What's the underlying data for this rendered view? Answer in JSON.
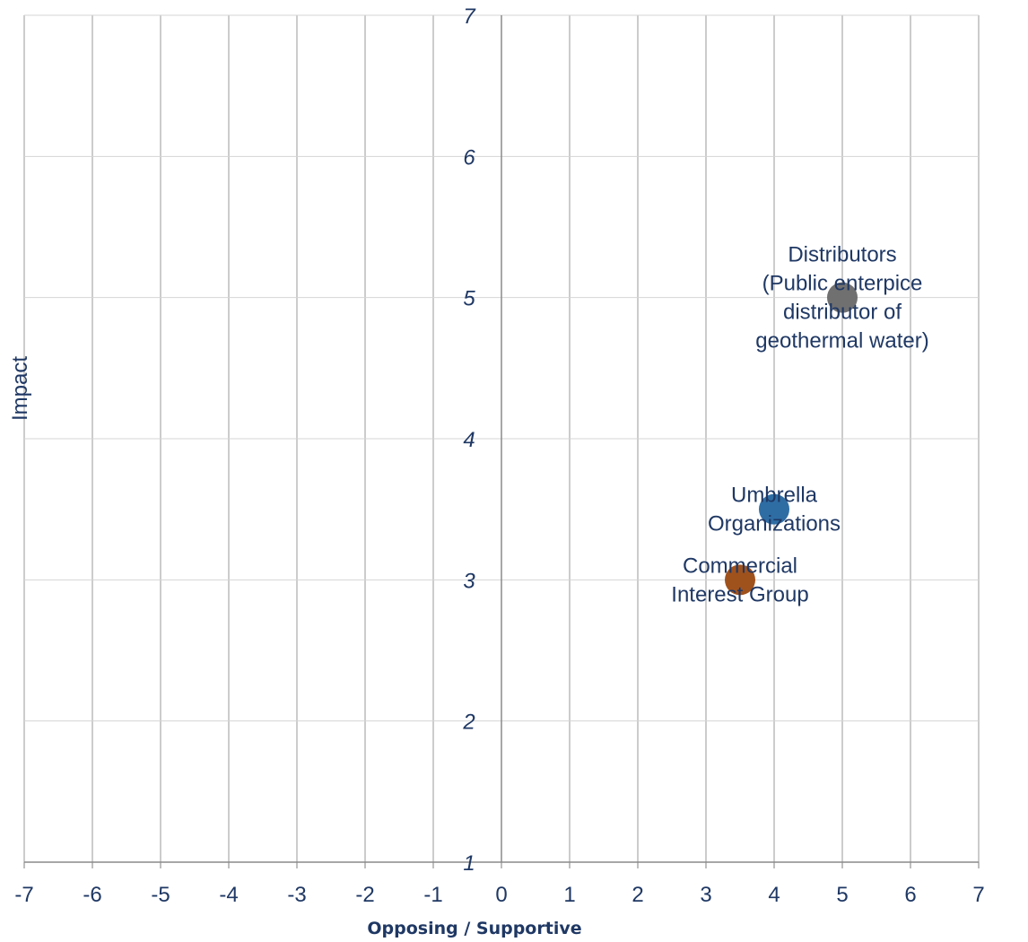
{
  "chart_data": {
    "type": "scatter",
    "title": "",
    "xlabel": "Opposing / Supportive",
    "ylabel": "Impact",
    "xlim": [
      -7,
      7
    ],
    "ylim": [
      1,
      7
    ],
    "x_ticks": [
      "-7",
      "-6",
      "-5",
      "-4",
      "-3",
      "-2",
      "-1",
      "0",
      "1",
      "2",
      "3",
      "4",
      "5",
      "6",
      "7"
    ],
    "y_ticks": [
      "1",
      "2",
      "3",
      "4",
      "5",
      "6",
      "7"
    ],
    "grid": true,
    "legend": "none",
    "points": [
      {
        "label_lines": [
          "Distributors",
          "(Public enterpice",
          "distributor of",
          "geothermal water)"
        ],
        "x": 5,
        "y": 5,
        "color": "#707070"
      },
      {
        "label_lines": [
          "Umbrella",
          "Organizations"
        ],
        "x": 4,
        "y": 3.5,
        "color": "#2e6da4"
      },
      {
        "label_lines": [
          "Commercial",
          "Interest Group"
        ],
        "x": 3.5,
        "y": 3,
        "color": "#a0521d"
      }
    ]
  }
}
